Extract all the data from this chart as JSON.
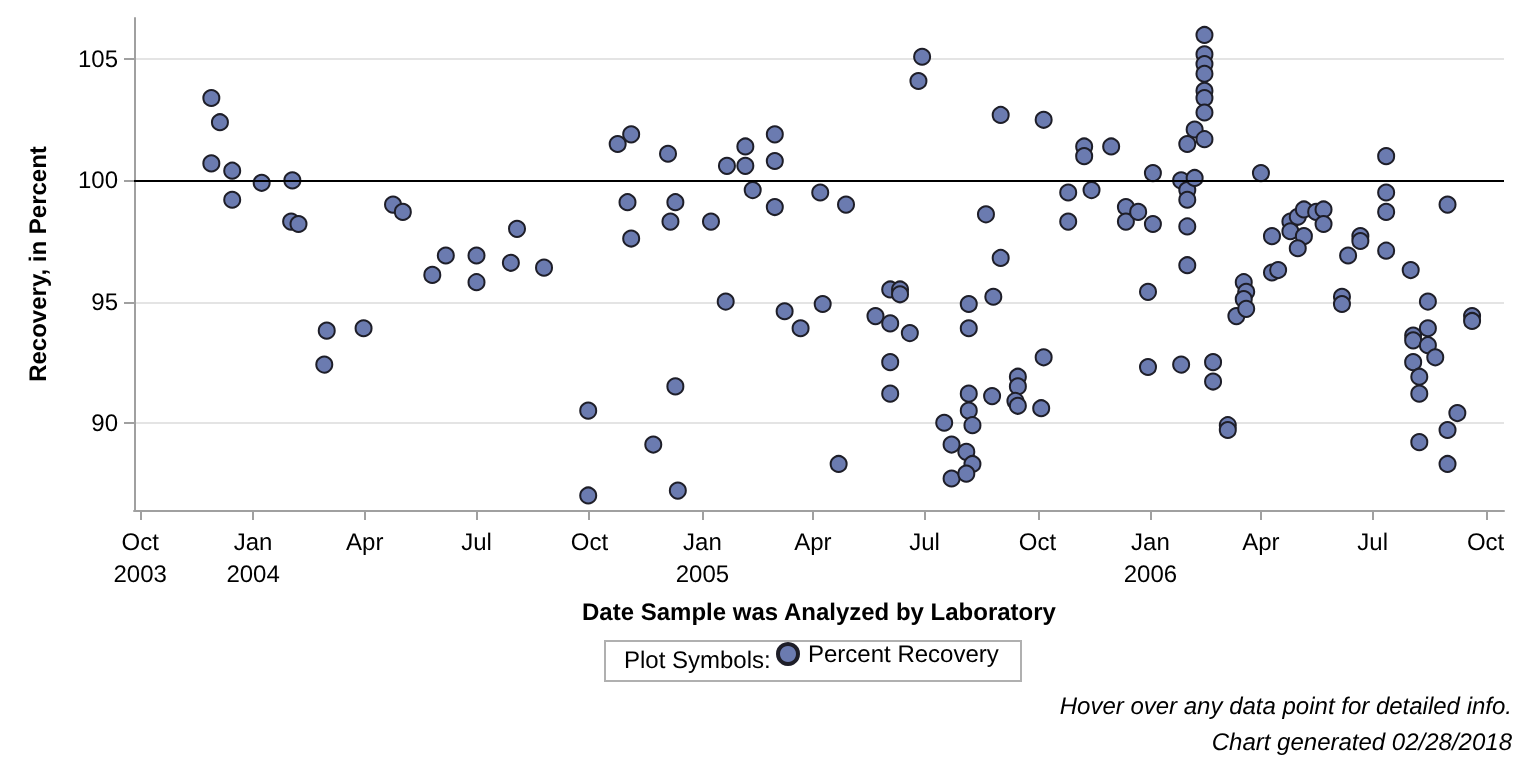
{
  "chart_data": {
    "type": "scatter",
    "xlabel": "Date Sample was Analyzed by Laboratory",
    "ylabel": "Recovery, in Percent",
    "legend_title": "Plot Symbols:",
    "legend": "bottom",
    "grid": "y",
    "marker": "circle",
    "xlim": [
      "2003-09-26",
      "2006-10-16"
    ],
    "ylim": [
      86.4,
      106.7
    ],
    "yticks": [
      90,
      95,
      100,
      105
    ],
    "xticks": [
      {
        "value": "2003-10-01",
        "label": "Oct\n2003"
      },
      {
        "value": "2004-01-01",
        "label": "Jan\n2004"
      },
      {
        "value": "2004-04-01",
        "label": "Apr"
      },
      {
        "value": "2004-07-01",
        "label": "Jul"
      },
      {
        "value": "2004-10-01",
        "label": "Oct"
      },
      {
        "value": "2005-01-01",
        "label": "Jan\n2005"
      },
      {
        "value": "2005-04-01",
        "label": "Apr"
      },
      {
        "value": "2005-07-01",
        "label": "Jul"
      },
      {
        "value": "2005-10-01",
        "label": "Oct"
      },
      {
        "value": "2006-01-01",
        "label": "Jan\n2006"
      },
      {
        "value": "2006-04-01",
        "label": "Apr"
      },
      {
        "value": "2006-07-01",
        "label": "Jul"
      },
      {
        "value": "2006-10-01",
        "label": "Oct"
      }
    ],
    "ref_lines": [
      {
        "axis": "y",
        "value": 100,
        "color": "#000000"
      }
    ],
    "annotations": [
      "Hover over any data point for detailed info.",
      "Chart generated 02/28/2018"
    ],
    "series": [
      {
        "name": "Percent Recovery",
        "color": "#6b7bb0",
        "x": [
          "2003-11-28",
          "2003-12-05",
          "2003-11-28",
          "2003-12-15",
          "2003-12-15",
          "2004-01-08",
          "2004-02-02",
          "2004-02-01",
          "2004-02-07",
          "2004-03-01",
          "2004-02-28",
          "2004-03-31",
          "2004-04-24",
          "2004-05-02",
          "2004-05-26",
          "2004-06-06",
          "2004-07-01",
          "2004-07-01",
          "2004-07-29",
          "2004-08-03",
          "2004-08-25",
          "2004-09-30",
          "2004-09-30",
          "2004-10-24",
          "2004-11-04",
          "2004-11-01",
          "2004-11-04",
          "2004-11-22",
          "2004-12-04",
          "2004-12-10",
          "2004-12-06",
          "2004-12-10",
          "2004-12-12",
          "2005-01-08",
          "2005-01-20",
          "2005-01-21",
          "2005-02-05",
          "2005-02-05",
          "2005-02-11",
          "2005-03-01",
          "2005-03-01",
          "2005-03-01",
          "2005-03-09",
          "2005-03-22",
          "2005-04-07",
          "2005-04-09",
          "2005-04-22",
          "2005-04-28",
          "2005-05-22",
          "2005-06-03",
          "2005-06-11",
          "2005-06-11",
          "2005-06-03",
          "2005-06-19",
          "2005-06-03",
          "2005-06-03",
          "2005-06-26",
          "2005-06-29",
          "2005-07-17",
          "2005-07-23",
          "2005-07-23",
          "2005-08-04",
          "2005-08-09",
          "2005-08-04",
          "2005-08-06",
          "2005-08-06",
          "2005-08-09",
          "2005-08-06",
          "2005-08-06",
          "2005-08-20",
          "2005-09-01",
          "2005-08-26",
          "2005-08-25",
          "2005-09-01",
          "2005-09-15",
          "2005-09-15",
          "2005-09-13",
          "2005-09-15",
          "2005-10-06",
          "2005-10-06",
          "2005-10-04",
          "2005-10-26",
          "2005-10-26",
          "2005-11-08",
          "2005-11-08",
          "2005-11-14",
          "2005-11-30",
          "2005-12-12",
          "2005-12-12",
          "2005-12-22",
          "2005-12-30",
          "2005-12-30",
          "2006-01-03",
          "2006-01-03",
          "2006-01-26",
          "2006-01-26",
          "2006-01-31",
          "2006-01-31",
          "2006-01-31",
          "2006-01-31",
          "2006-01-31",
          "2006-02-06",
          "2006-02-06",
          "2006-02-14",
          "2006-02-14",
          "2006-02-14",
          "2006-02-14",
          "2006-02-14",
          "2006-02-14",
          "2006-02-14",
          "2006-02-14",
          "2006-02-21",
          "2006-02-21",
          "2006-03-05",
          "2006-03-05",
          "2006-03-12",
          "2006-03-18",
          "2006-03-20",
          "2006-03-18",
          "2006-03-20",
          "2006-04-01",
          "2006-04-10",
          "2006-04-10",
          "2006-04-15",
          "2006-04-25",
          "2006-04-25",
          "2006-05-01",
          "2006-05-06",
          "2006-05-06",
          "2006-05-01",
          "2006-05-16",
          "2006-05-22",
          "2006-05-22",
          "2006-06-06",
          "2006-06-06",
          "2006-06-11",
          "2006-06-21",
          "2006-06-21",
          "2006-07-12",
          "2006-07-12",
          "2006-07-12",
          "2006-07-12",
          "2006-08-01",
          "2006-08-15",
          "2006-08-03",
          "2006-08-03",
          "2006-08-15",
          "2006-08-15",
          "2006-08-03",
          "2006-08-21",
          "2006-08-08",
          "2006-08-08",
          "2006-08-08",
          "2006-08-31",
          "2006-08-31",
          "2006-08-31",
          "2006-09-08",
          "2006-09-20",
          "2006-09-20"
        ],
        "values": [
          103.4,
          102.4,
          100.7,
          100.4,
          99.2,
          99.9,
          100.0,
          98.3,
          98.2,
          93.8,
          92.4,
          93.9,
          99.0,
          98.7,
          96.1,
          96.9,
          96.9,
          95.8,
          96.6,
          98.0,
          96.4,
          90.5,
          87.0,
          101.5,
          101.9,
          99.1,
          97.6,
          89.1,
          101.1,
          99.1,
          98.3,
          91.5,
          87.2,
          98.3,
          95.0,
          100.6,
          100.6,
          101.4,
          99.6,
          101.9,
          100.8,
          98.9,
          94.6,
          93.9,
          99.5,
          94.9,
          88.3,
          99.0,
          94.4,
          95.5,
          95.5,
          95.3,
          94.1,
          93.7,
          92.5,
          91.2,
          104.1,
          105.1,
          90.0,
          89.1,
          87.7,
          88.8,
          88.3,
          87.9,
          91.2,
          90.5,
          89.9,
          94.9,
          93.9,
          98.6,
          96.8,
          95.2,
          91.1,
          102.7,
          91.9,
          91.5,
          90.9,
          90.7,
          102.5,
          92.7,
          90.6,
          99.5,
          98.3,
          101.4,
          101.0,
          99.6,
          101.4,
          98.9,
          98.3,
          98.7,
          95.4,
          92.3,
          100.3,
          98.2,
          92.4,
          100.0,
          99.6,
          99.2,
          101.5,
          98.1,
          96.5,
          100.1,
          102.1,
          101.7,
          106.0,
          105.2,
          104.8,
          104.4,
          103.7,
          103.4,
          102.8,
          92.5,
          91.7,
          89.9,
          89.7,
          94.4,
          95.8,
          95.4,
          95.1,
          94.7,
          100.3,
          97.7,
          96.2,
          96.3,
          98.3,
          97.9,
          98.5,
          98.8,
          97.7,
          97.2,
          98.7,
          98.8,
          98.2,
          95.2,
          94.9,
          96.9,
          97.7,
          97.5,
          101.0,
          99.5,
          98.7,
          97.1,
          96.3,
          95.0,
          93.6,
          93.4,
          93.9,
          93.2,
          92.5,
          92.7,
          91.9,
          91.2,
          89.2,
          99.0,
          89.7,
          88.3,
          90.4,
          94.4,
          94.2
        ]
      }
    ]
  }
}
